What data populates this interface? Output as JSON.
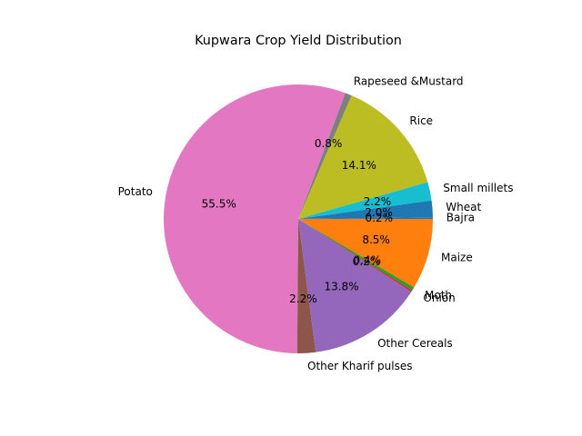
{
  "chart_data": {
    "type": "pie",
    "title": "Kupwara Crop Yield Distribution",
    "start_angle_deg": 0,
    "direction": "counterclockwise",
    "slices": [
      {
        "label": "Bajra",
        "value": 0.2,
        "pct_label": "0.2%",
        "color": "#1f77b4"
      },
      {
        "label": "Wheat",
        "value": 2.0,
        "pct_label": "2.0%",
        "color": "#1f77b4"
      },
      {
        "label": "Small millets",
        "value": 2.2,
        "pct_label": "2.2%",
        "color": "#17becf"
      },
      {
        "label": "Rice",
        "value": 14.1,
        "pct_label": "14.1%",
        "color": "#bcbd22"
      },
      {
        "label": "Rapeseed &Mustard",
        "value": 0.8,
        "pct_label": "0.8%",
        "color": "#7f7f7f"
      },
      {
        "label": "Potato",
        "value": 55.5,
        "pct_label": "55.5%",
        "color": "#e377c2"
      },
      {
        "label": "Other Kharif pulses",
        "value": 2.2,
        "pct_label": "2.2%",
        "color": "#8c564b"
      },
      {
        "label": "Other Cereals",
        "value": 13.8,
        "pct_label": "13.8%",
        "color": "#9467bd"
      },
      {
        "label": "Onion",
        "value": 0.2,
        "pct_label": "0.2%",
        "color": "#d62728"
      },
      {
        "label": "Moth",
        "value": 0.4,
        "pct_label": "0.4%",
        "color": "#2ca02c"
      },
      {
        "label": "Maize",
        "value": 8.5,
        "pct_label": "8.5%",
        "color": "#ff7f0e"
      }
    ]
  }
}
